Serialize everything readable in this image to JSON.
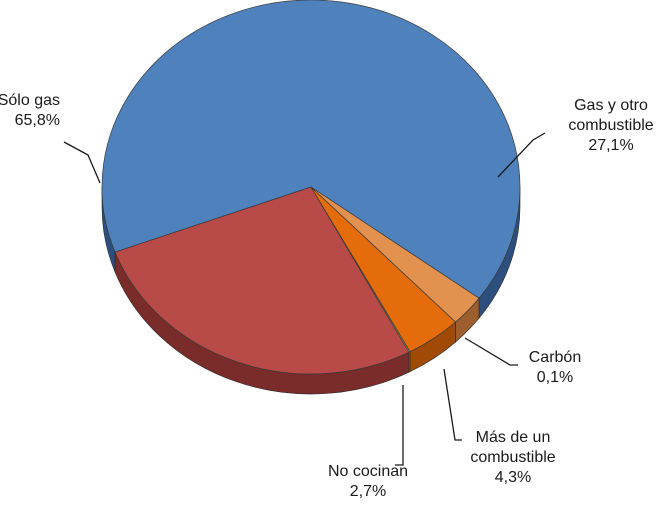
{
  "chart_data": {
    "type": "pie",
    "style": "3d",
    "title": "",
    "slices": [
      {
        "label_lines": [
          "Sólo gas",
          "65,8%"
        ],
        "value": 65.8,
        "color": "#4f81bd",
        "side": "#2c4f7e"
      },
      {
        "label_lines": [
          "Gas y otro",
          "combustible",
          "27,1%"
        ],
        "value": 27.1,
        "color": "#b84a47",
        "side": "#7a2c2a"
      },
      {
        "label_lines": [
          "Carbón",
          "0,1%"
        ],
        "value": 0.1,
        "color": "#9bbb59",
        "side": "#6a8a35"
      },
      {
        "label_lines": [
          "Más de un",
          "combustible",
          "4,3%"
        ],
        "value": 4.3,
        "color": "#e46c0a",
        "side": "#a04a05"
      },
      {
        "label_lines": [
          "No cocinan",
          "2,7%"
        ],
        "value": 2.7,
        "color": "#e2914f",
        "side": "#9c5e2c"
      }
    ]
  }
}
